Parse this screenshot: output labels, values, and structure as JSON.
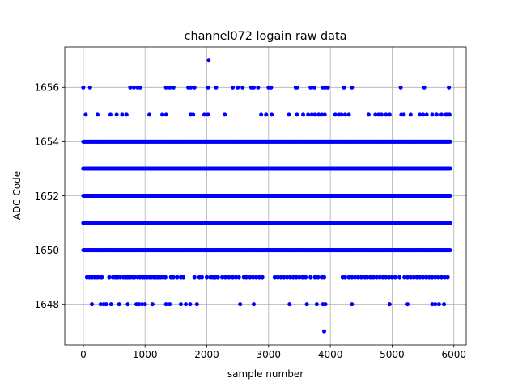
{
  "chart_data": {
    "type": "scatter",
    "title": "channel072 logain raw data",
    "xlabel": "sample number",
    "ylabel": "ADC Code",
    "xlim": [
      -300,
      6200
    ],
    "ylim": [
      1646.5,
      1657.5
    ],
    "xticks": [
      0,
      1000,
      2000,
      3000,
      4000,
      5000,
      6000
    ],
    "yticks": [
      1648,
      1650,
      1652,
      1654,
      1656
    ],
    "grid": true,
    "marker_color": "#0000ff",
    "sample_count": 5950,
    "levels": [
      {
        "y": 1650,
        "continuous": true
      },
      {
        "y": 1651,
        "continuous": true
      },
      {
        "y": 1652,
        "continuous": true
      },
      {
        "y": 1653,
        "continuous": true
      },
      {
        "y": 1654,
        "continuous": true
      },
      {
        "y": 1649,
        "continuous": false,
        "x": [
          60,
          100,
          140,
          180,
          230,
          270,
          300,
          420,
          480,
          520,
          560,
          600,
          650,
          690,
          720,
          760,
          800,
          830,
          880,
          920,
          960,
          990,
          1030,
          1070,
          1100,
          1140,
          1180,
          1210,
          1250,
          1290,
          1330,
          1420,
          1460,
          1520,
          1580,
          1620,
          1800,
          1880,
          1920,
          2000,
          2060,
          2100,
          2140,
          2180,
          2250,
          2300,
          2360,
          2420,
          2470,
          2520,
          2600,
          2640,
          2700,
          2750,
          2800,
          2850,
          2900,
          3100,
          3150,
          3200,
          3250,
          3300,
          3350,
          3400,
          3450,
          3500,
          3550,
          3600,
          3680,
          3750,
          3800,
          3860,
          3900,
          4200,
          4240,
          4300,
          4350,
          4400,
          4450,
          4500,
          4560,
          4600,
          4650,
          4700,
          4750,
          4800,
          4850,
          4900,
          4950,
          5000,
          5050,
          5120,
          5200,
          5250,
          5300,
          5350,
          5400,
          5450,
          5500,
          5550,
          5600,
          5650,
          5700,
          5750,
          5800,
          5850,
          5900
        ]
      },
      {
        "y": 1648,
        "continuous": false,
        "x": [
          140,
          280,
          330,
          370,
          450,
          580,
          720,
          860,
          900,
          950,
          1000,
          1120,
          1340,
          1400,
          1580,
          1660,
          1730,
          1840,
          2540,
          2760,
          3340,
          3620,
          3780,
          3880,
          3920,
          4350,
          4960,
          5250,
          5650,
          5700,
          5760,
          5840
        ]
      },
      {
        "y": 1655,
        "continuous": false,
        "x": [
          40,
          230,
          440,
          540,
          630,
          700,
          1070,
          1280,
          1340,
          1740,
          1780,
          1960,
          2020,
          2290,
          2880,
          2960,
          3050,
          3330,
          3460,
          3560,
          3640,
          3700,
          3750,
          3810,
          3860,
          3910,
          4080,
          4140,
          4180,
          4240,
          4300,
          4620,
          4730,
          4780,
          4830,
          4900,
          4960,
          5150,
          5190,
          5300,
          5450,
          5500,
          5560,
          5650,
          5720,
          5800,
          5870,
          5900,
          5930
        ]
      },
      {
        "y": 1656,
        "continuous": false,
        "x": [
          0,
          110,
          760,
          820,
          880,
          920,
          1340,
          1400,
          1460,
          1700,
          1740,
          1800,
          2020,
          2150,
          2420,
          2500,
          2580,
          2720,
          2760,
          2830,
          3000,
          3040,
          3440,
          3460,
          3680,
          3740,
          3880,
          3920,
          3960,
          4220,
          4350,
          5140,
          5520,
          5920
        ]
      },
      {
        "y": 1657,
        "continuous": false,
        "x": [
          2030
        ]
      },
      {
        "y": 1647,
        "continuous": false,
        "x": [
          3900
        ]
      }
    ]
  }
}
